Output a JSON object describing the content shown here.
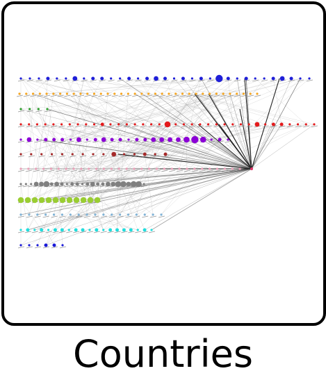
{
  "caption": "Countries",
  "graph": {
    "hub_color": "#dd3366",
    "edge_color": "#555555",
    "rows": [
      {
        "color": "#1f1fd8",
        "nodes": 33,
        "sizes": [
          1,
          1,
          1,
          2,
          1,
          1,
          3,
          1,
          2,
          2,
          1,
          1,
          2,
          1,
          2,
          3,
          2,
          1,
          2,
          1,
          2,
          1,
          5,
          2,
          1,
          2,
          1,
          1,
          2,
          3,
          2,
          1,
          1
        ]
      },
      {
        "color": "#f5a623",
        "nodes": 36,
        "sizes": [
          1,
          1,
          1,
          1,
          1,
          1,
          1,
          1,
          1,
          1,
          1,
          1,
          1,
          1,
          1,
          1,
          1,
          1,
          1,
          1,
          1,
          1,
          1,
          1,
          1,
          1,
          1,
          1,
          1,
          1,
          1,
          1,
          1,
          1,
          1,
          1
        ]
      },
      {
        "color": "#2e9e2e",
        "nodes": 4,
        "sizes": [
          1,
          1,
          1,
          1
        ]
      },
      {
        "color": "#e41a1c",
        "nodes": 37,
        "sizes": [
          1,
          1,
          1,
          1,
          1,
          1,
          1,
          1,
          1,
          1,
          2,
          1,
          1,
          1,
          1,
          1,
          1,
          1,
          4,
          1,
          1,
          1,
          1,
          1,
          1,
          1,
          1,
          1,
          1,
          3,
          1,
          2,
          2,
          1,
          1,
          1,
          1
        ]
      },
      {
        "color": "#8b00d6",
        "nodes": 26,
        "sizes": [
          1,
          3,
          1,
          2,
          2,
          2,
          1,
          3,
          1,
          2,
          3,
          2,
          2,
          1,
          2,
          2,
          3,
          3,
          3,
          3,
          4,
          5,
          4,
          1,
          2,
          1
        ]
      },
      {
        "color": "#a52a2a",
        "nodes": 15,
        "sizes": [
          1,
          1,
          1,
          1,
          1,
          1,
          1,
          1,
          1,
          3,
          1,
          1,
          2,
          1,
          2
        ]
      },
      {
        "color": "#e8a0b8",
        "nodes": 30,
        "sizes": [
          1,
          1,
          1,
          1,
          1,
          1,
          1,
          1,
          1,
          1,
          1,
          1,
          1,
          1,
          1,
          1,
          1,
          1,
          1,
          1,
          1,
          1,
          1,
          1,
          1,
          1,
          1,
          1,
          1,
          1
        ]
      },
      {
        "color": "#808080",
        "nodes": 25,
        "sizes": [
          1,
          1,
          1,
          3,
          3,
          4,
          2,
          3,
          2,
          1,
          2,
          2,
          1,
          2,
          3,
          2,
          2,
          3,
          3,
          4,
          4,
          3,
          4,
          4,
          1
        ]
      },
      {
        "color": "#9acd32",
        "nodes": 12,
        "sizes": [
          4,
          4,
          4,
          4,
          4,
          4,
          4,
          4,
          4,
          4,
          4,
          4
        ]
      },
      {
        "color": "#7fb2d6",
        "nodes": 18,
        "sizes": [
          1,
          1,
          1,
          1,
          1,
          1,
          1,
          1,
          1,
          1,
          1,
          1,
          1,
          1,
          1,
          1,
          1,
          1
        ]
      },
      {
        "color": "#22dddd",
        "nodes": 20,
        "sizes": [
          1,
          2,
          1,
          2,
          1,
          2,
          2,
          1,
          2,
          2,
          1,
          2,
          1,
          2,
          2,
          2,
          2,
          1,
          2,
          1
        ]
      },
      {
        "color": "#1a1ad8",
        "nodes": 6,
        "sizes": [
          1,
          1,
          1,
          2,
          2,
          1
        ]
      }
    ]
  }
}
